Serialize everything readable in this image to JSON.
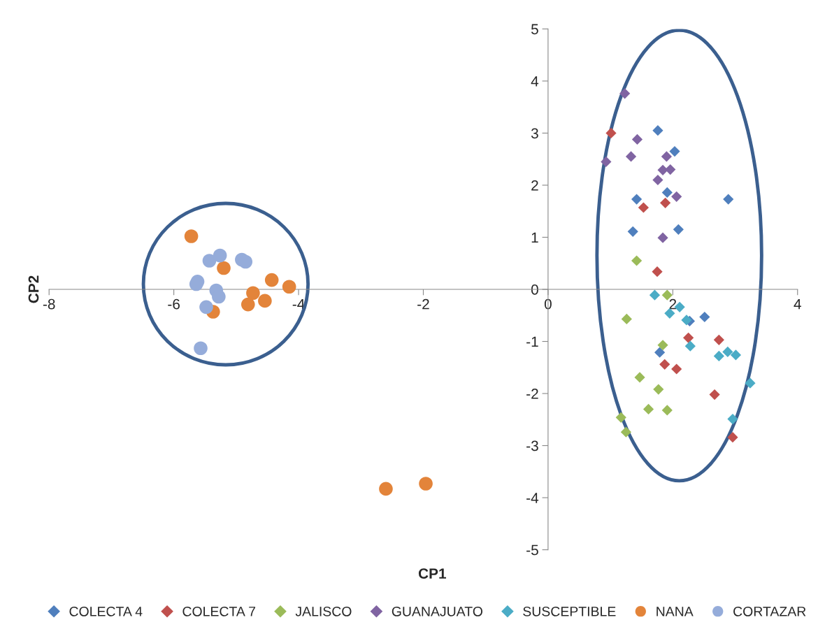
{
  "chart_data": {
    "type": "scatter",
    "xlabel": "CP1",
    "ylabel": "CP2",
    "xlim": [
      -8,
      4
    ],
    "xticks": [
      -8,
      -6,
      -4,
      -2,
      0,
      2,
      4
    ],
    "ylim": [
      -5,
      5
    ],
    "yticks": [
      -5,
      -4,
      -3,
      -2,
      -1,
      0,
      1,
      2,
      3,
      4,
      5
    ],
    "grid": false,
    "legend": "bottom",
    "series": [
      {
        "name": "COLECTA 4",
        "color": "#4f7fbd",
        "marker": "diamond",
        "x": [
          1.76,
          2.03,
          1.91,
          1.42,
          2.89,
          1.36,
          2.09,
          2.27,
          2.51,
          1.79
        ],
        "values": [
          3.05,
          2.65,
          1.86,
          1.73,
          1.73,
          1.11,
          1.15,
          -0.61,
          -0.53,
          -1.21
        ]
      },
      {
        "name": "COLECTA 7",
        "color": "#c0504d",
        "marker": "diamond",
        "x": [
          1.01,
          1.53,
          1.88,
          1.75,
          2.25,
          2.74,
          1.87,
          2.06,
          2.67,
          2.96
        ],
        "values": [
          3.0,
          1.57,
          1.66,
          0.34,
          -0.93,
          -0.97,
          -1.44,
          -1.53,
          -2.02,
          -2.84
        ]
      },
      {
        "name": "JALISCO",
        "color": "#9bbb59",
        "marker": "diamond",
        "x": [
          1.42,
          1.91,
          1.26,
          1.84,
          1.47,
          1.77,
          1.61,
          1.91,
          1.17,
          1.25
        ],
        "values": [
          0.55,
          -0.11,
          -0.57,
          -1.07,
          -1.69,
          -1.92,
          -2.3,
          -2.32,
          -2.46,
          -2.74
        ]
      },
      {
        "name": "GUANAJUATO",
        "color": "#8064a2",
        "marker": "diamond",
        "x": [
          1.23,
          1.43,
          1.33,
          0.93,
          1.9,
          1.84,
          1.96,
          1.76,
          2.06,
          1.84
        ],
        "values": [
          3.76,
          2.88,
          2.55,
          2.45,
          2.55,
          2.29,
          2.3,
          2.1,
          1.78,
          0.99
        ]
      },
      {
        "name": "SUSCEPTIBLE",
        "color": "#4bacc6",
        "marker": "diamond",
        "x": [
          1.71,
          2.11,
          1.95,
          2.22,
          2.28,
          2.74,
          2.88,
          3.01,
          3.24,
          2.96
        ],
        "values": [
          -0.11,
          -0.34,
          -0.46,
          -0.59,
          -1.09,
          -1.28,
          -1.2,
          -1.26,
          -1.8,
          -2.49
        ]
      },
      {
        "name": "NANA",
        "color": "#e3843a",
        "marker": "circle",
        "x": [
          -5.72,
          -5.2,
          -4.43,
          -4.15,
          -4.73,
          -4.81,
          -4.54,
          -5.37,
          -2.6,
          -1.96
        ],
        "values": [
          1.02,
          0.41,
          0.18,
          0.05,
          -0.07,
          -0.29,
          -0.22,
          -0.43,
          -3.83,
          -3.73
        ]
      },
      {
        "name": "CORTAZAR",
        "color": "#95acda",
        "marker": "circle",
        "x": [
          -5.43,
          -5.26,
          -4.91,
          -4.85,
          -5.62,
          -5.64,
          -5.32,
          -5.28,
          -5.48,
          -5.57
        ],
        "values": [
          0.55,
          0.65,
          0.57,
          0.53,
          0.15,
          0.1,
          -0.02,
          -0.14,
          -0.34,
          -1.13
        ]
      }
    ]
  }
}
